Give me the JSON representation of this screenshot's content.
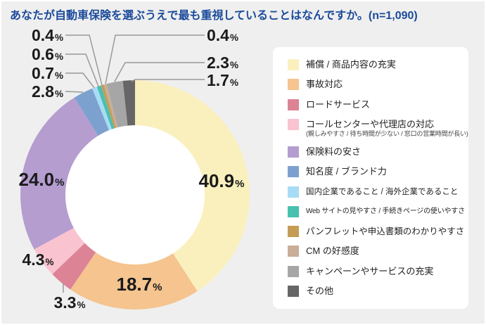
{
  "header": {
    "title": "あなたが自動車保険を選ぶうえで最も重視していることはなんですか。(n=1,090)"
  },
  "colors": {
    "background": "#EFEFEF",
    "title_text": "#1A4A9B",
    "legend_panel_bg": "#FFFFFF",
    "percent_label_text": "#1B1B1B",
    "leader_line": "#999999",
    "donut_hole": "#FFFFFF"
  },
  "chart_data": {
    "type": "pie",
    "donut": true,
    "start_angle": "top",
    "direction": "clockwise",
    "legend_position": "right",
    "title": "あなたが自動車保険を選ぶうえで最も重視していることはなんですか。(n=1,090)",
    "sample_size_note": "n=1,090",
    "value_suffix": "%",
    "segments": [
      {
        "label": "補償 / 商品内容の充実",
        "value": 40.9,
        "color": "#FAF0BE"
      },
      {
        "label": "事故対応",
        "value": 18.7,
        "color": "#F5C48F"
      },
      {
        "label": "ロードサービス",
        "value": 3.3,
        "color": "#DD8396"
      },
      {
        "label": "コールセンターや代理店の対応",
        "sublabel": "(親しみやすさ / 待ち時間が少ない / 窓口の営業時間が長い)",
        "value": 4.3,
        "color": "#F9C3CF"
      },
      {
        "label": "保険料の安さ",
        "value": 24.0,
        "color": "#B59DD0"
      },
      {
        "label": "知名度 / ブランド力",
        "value": 2.8,
        "color": "#7CA1CF"
      },
      {
        "label": "国内企業であること / 海外企業であること",
        "value": 0.7,
        "color": "#A8DCF6"
      },
      {
        "label": "Web サイトの見やすさ / 手続きページの使いやすさ",
        "value": 0.6,
        "color": "#49C0B0"
      },
      {
        "label": "パンフレットや申込書類のわかりやすさ",
        "value": 0.4,
        "color": "#C59C56"
      },
      {
        "label": "CM の好感度",
        "value": 0.4,
        "color": "#C9AE98"
      },
      {
        "label": "キャンペーンやサービスの充実",
        "value": 2.3,
        "color": "#A6A6A6"
      },
      {
        "label": "その他",
        "value": 1.7,
        "color": "#666666"
      }
    ]
  }
}
